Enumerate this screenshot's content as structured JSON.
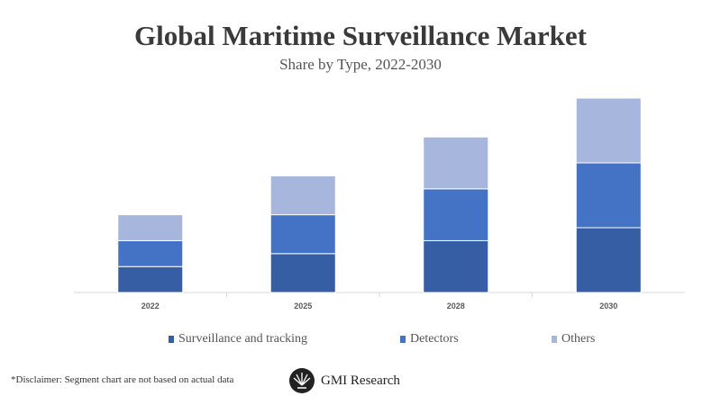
{
  "chart_data": {
    "type": "bar",
    "stacked": true,
    "title": "Global Maritime Surveillance Market",
    "subtitle": "Share by Type, 2022-2030",
    "categories": [
      "2022",
      "2025",
      "2028",
      "2030"
    ],
    "series": [
      {
        "name": "Surveillance and tracking",
        "values": [
          2,
          3,
          4,
          5
        ],
        "color": "#355ea4"
      },
      {
        "name": "Detectors",
        "values": [
          2,
          3,
          4,
          5
        ],
        "color": "#4472c4"
      },
      {
        "name": "Others",
        "values": [
          2,
          3,
          4,
          5
        ],
        "color": "#a7b6dd"
      }
    ],
    "xlabel": "",
    "ylabel": "",
    "grid": false,
    "legend": "bottom"
  },
  "footer": {
    "disclaimer": "*Disclaimer:  Segment chart are not based on actual data",
    "logo_text": "GMI Research"
  }
}
